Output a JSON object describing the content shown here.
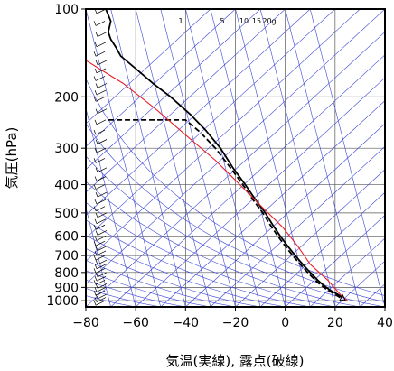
{
  "chart_data": {
    "type": "line",
    "title": "",
    "xlabel": "気温(実線), 露点(破線)",
    "ylabel": "気圧(hPa)",
    "xlim": [
      -80,
      40
    ],
    "ylim": [
      1050,
      100
    ],
    "yscale": "log",
    "x_ticks": [
      -80,
      -60,
      -40,
      -20,
      0,
      20,
      40
    ],
    "x_tick_labels": [
      "−80",
      "−60",
      "−40",
      "−20",
      "0",
      "20",
      "40"
    ],
    "y_ticks": [
      100,
      200,
      300,
      400,
      500,
      600,
      700,
      800,
      900,
      1000
    ],
    "y_tick_labels": [
      "100",
      "200",
      "300",
      "400",
      "500",
      "600",
      "700",
      "800",
      "900",
      "1000"
    ],
    "mixing_ratio_labels": [
      "1",
      "5",
      "10",
      "15",
      "20g"
    ],
    "mixing_ratio_values": [
      1,
      5,
      10,
      15,
      20
    ],
    "series": [
      {
        "label": "temperature (solid black)",
        "color": "#000000",
        "points": [
          [
            23,
            975
          ],
          [
            21,
            950
          ],
          [
            18,
            920
          ],
          [
            15,
            880
          ],
          [
            13,
            850
          ],
          [
            10,
            800
          ],
          [
            7,
            750
          ],
          [
            4,
            700
          ],
          [
            1,
            650
          ],
          [
            -2,
            600
          ],
          [
            -5,
            550
          ],
          [
            -8,
            500
          ],
          [
            -12,
            450
          ],
          [
            -16,
            400
          ],
          [
            -21,
            350
          ],
          [
            -26,
            300
          ],
          [
            -32,
            260
          ],
          [
            -38,
            230
          ],
          [
            -46,
            200
          ],
          [
            -53,
            180
          ],
          [
            -60,
            160
          ],
          [
            -66,
            145
          ],
          [
            -68,
            135
          ],
          [
            -70,
            127
          ],
          [
            -71,
            120
          ],
          [
            -70,
            110
          ],
          [
            -72,
            100
          ]
        ]
      },
      {
        "label": "dew point (dashed black)",
        "color": "#000000",
        "points": [
          [
            22,
            975
          ],
          [
            20,
            950
          ],
          [
            17,
            920
          ],
          [
            14,
            880
          ],
          [
            12,
            850
          ],
          [
            9,
            800
          ],
          [
            6,
            750
          ],
          [
            3,
            700
          ],
          [
            0,
            650
          ],
          [
            -3,
            600
          ],
          [
            -6,
            550
          ],
          [
            -9,
            500
          ],
          [
            -13,
            450
          ],
          [
            -17,
            400
          ],
          [
            -22,
            350
          ],
          [
            -28,
            300
          ],
          [
            -34,
            265
          ],
          [
            -40,
            240
          ],
          [
            -55,
            240
          ],
          [
            -71,
            240
          ]
        ]
      },
      {
        "label": "red line",
        "color": "#e8202a",
        "points": [
          [
            25,
            1000
          ],
          [
            22,
            950
          ],
          [
            17,
            850
          ],
          [
            10,
            750
          ],
          [
            5,
            650
          ],
          [
            -1,
            560
          ],
          [
            -9,
            480
          ],
          [
            -17,
            410
          ],
          [
            -28,
            330
          ],
          [
            -40,
            270
          ],
          [
            -52,
            220
          ],
          [
            -65,
            180
          ],
          [
            -80,
            150
          ]
        ]
      }
    ],
    "wind_barbs": {
      "x_position_celsius": -72,
      "pressure_levels": [
        1000,
        975,
        950,
        925,
        900,
        875,
        850,
        825,
        800,
        775,
        750,
        725,
        700,
        675,
        650,
        625,
        600,
        575,
        550,
        525,
        500,
        475,
        450,
        425,
        400,
        375,
        350,
        325,
        300,
        280,
        260,
        240,
        220,
        200,
        190,
        180,
        170,
        160,
        150,
        140,
        130,
        120,
        110,
        100
      ]
    },
    "grid": true,
    "background_lines_color": "#3c46d6"
  }
}
